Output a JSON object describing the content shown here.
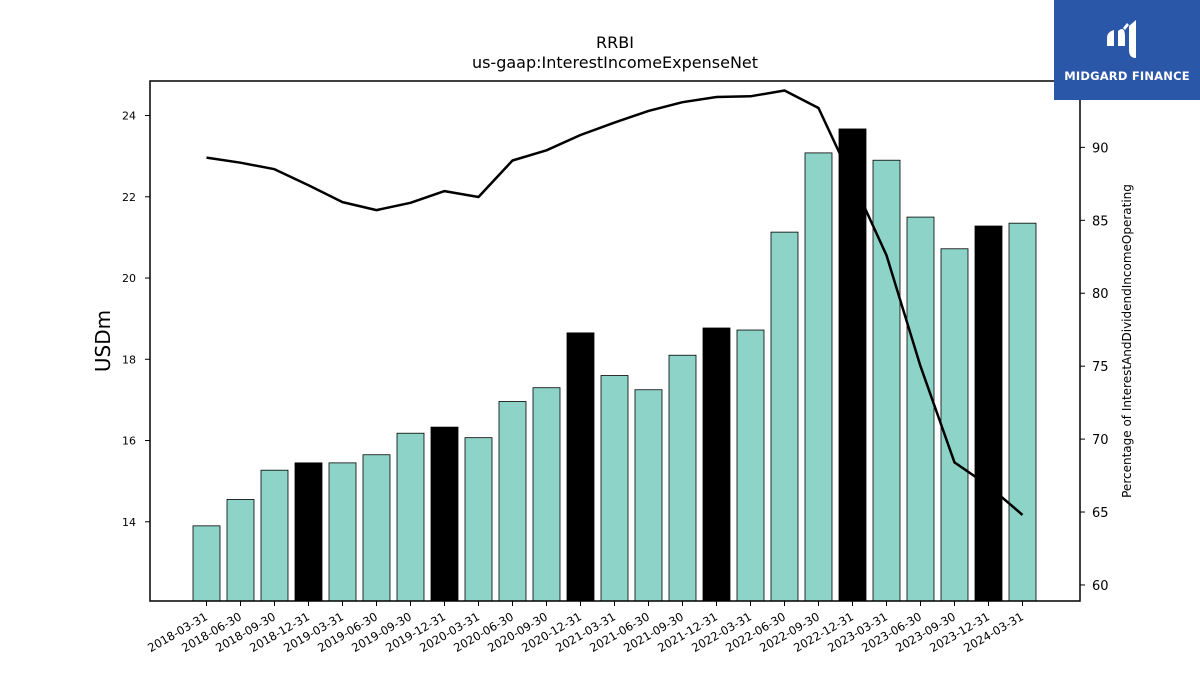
{
  "logo": {
    "text": "MIDGARD FINANCE"
  },
  "chart_data": {
    "type": "bar",
    "title": "RRBI",
    "subtitle": "us-gaap:InterestIncomeExpenseNet",
    "ylabel": "USDm",
    "y2label": "Percentage of InterestAndDividendIncomeOperating",
    "categories": [
      "2018-03-31",
      "2018-06-30",
      "2018-09-30",
      "2018-12-31",
      "2019-03-31",
      "2019-06-30",
      "2019-09-30",
      "2019-12-31",
      "2020-03-31",
      "2020-06-30",
      "2020-09-30",
      "2020-12-31",
      "2021-03-31",
      "2021-06-30",
      "2021-09-30",
      "2021-12-31",
      "2022-03-31",
      "2022-06-30",
      "2022-09-30",
      "2022-12-31",
      "2023-03-31",
      "2023-06-30",
      "2023-09-30",
      "2023-12-31",
      "2024-03-31"
    ],
    "values": [
      13.9,
      14.55,
      15.27,
      15.45,
      15.45,
      15.65,
      16.18,
      16.33,
      16.07,
      16.96,
      17.3,
      18.65,
      17.6,
      17.25,
      18.1,
      18.77,
      18.72,
      21.13,
      23.08,
      23.67,
      22.9,
      21.5,
      20.72,
      21.28,
      21.35
    ],
    "bar_colors": [
      "#8dd3c7",
      "#8dd3c7",
      "#8dd3c7",
      "#000000",
      "#8dd3c7",
      "#8dd3c7",
      "#8dd3c7",
      "#000000",
      "#8dd3c7",
      "#8dd3c7",
      "#8dd3c7",
      "#000000",
      "#8dd3c7",
      "#8dd3c7",
      "#8dd3c7",
      "#000000",
      "#8dd3c7",
      "#8dd3c7",
      "#8dd3c7",
      "#000000",
      "#8dd3c7",
      "#8dd3c7",
      "#8dd3c7",
      "#000000",
      "#8dd3c7"
    ],
    "ylim": [
      12.05,
      24.85
    ],
    "yticks": [
      14,
      16,
      18,
      20,
      22,
      24
    ],
    "line_series": {
      "values": [
        89.3,
        88.95,
        88.5,
        87.4,
        86.25,
        85.7,
        86.2,
        87.0,
        86.6,
        89.1,
        89.8,
        90.85,
        91.7,
        92.5,
        93.1,
        93.45,
        93.5,
        93.9,
        92.7,
        87.7,
        82.6,
        75.0,
        68.4,
        66.8,
        64.8
      ],
      "color": "#000000"
    },
    "y2lim": [
      58.9,
      94.55
    ],
    "y2ticks": [
      60,
      65,
      70,
      75,
      80,
      85,
      90
    ],
    "colors": {
      "bar_default": "#8dd3c7",
      "bar_highlight": "#000000",
      "line": "#000000",
      "logo_bg": "#2b57a8"
    }
  }
}
